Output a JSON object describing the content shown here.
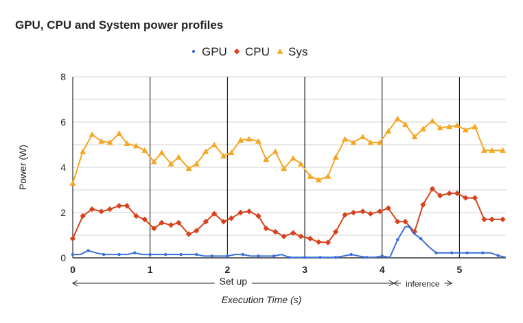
{
  "chart_data": {
    "type": "line",
    "title": "GPU, CPU and System power profiles",
    "xlabel": "Execution Time (s)",
    "ylabel": "Power (W)",
    "xlim": [
      0,
      5.6
    ],
    "ylim": [
      0,
      8
    ],
    "xticks": [
      0,
      1,
      2,
      3,
      4,
      5
    ],
    "yticks": [
      0,
      2,
      4,
      6,
      8
    ],
    "x_tick_labels": [
      "0",
      "1",
      "2",
      "3",
      "4",
      "5"
    ],
    "y_tick_labels": [
      "0",
      "2",
      "4",
      "6",
      "8"
    ],
    "legend_position": "top-center",
    "phases": [
      {
        "label": "Set up",
        "start": 0,
        "end": 4.15
      },
      {
        "label": "inference",
        "start": 4.15,
        "end": 4.9
      }
    ],
    "series": [
      {
        "name": "GPU",
        "color": "#3b6fd8",
        "marker": "circle",
        "x": [
          0,
          0.1,
          0.2,
          0.3,
          0.4,
          0.5,
          0.6,
          0.7,
          0.8,
          0.9,
          1.0,
          1.1,
          1.2,
          1.3,
          1.4,
          1.5,
          1.6,
          1.7,
          1.8,
          1.9,
          2.0,
          2.1,
          2.2,
          2.3,
          2.4,
          2.5,
          2.6,
          2.7,
          2.8,
          2.9,
          3.0,
          3.1,
          3.2,
          3.3,
          3.4,
          3.5,
          3.6,
          3.7,
          3.8,
          3.9,
          4.0,
          4.1,
          4.2,
          4.3,
          4.35,
          4.4,
          4.5,
          4.6,
          4.7,
          4.8,
          4.9,
          5.0,
          5.1,
          5.2,
          5.3,
          5.4,
          5.5,
          5.6
        ],
        "values": [
          0.15,
          0.15,
          0.32,
          0.22,
          0.15,
          0.15,
          0.15,
          0.15,
          0.22,
          0.15,
          0.15,
          0.15,
          0.15,
          0.15,
          0.15,
          0.15,
          0.15,
          0.08,
          0.08,
          0.08,
          0.08,
          0.15,
          0.15,
          0.08,
          0.08,
          0.08,
          0.08,
          0.15,
          0.02,
          0.02,
          0.02,
          0.02,
          0.02,
          0.02,
          0.02,
          0.08,
          0.15,
          0.08,
          0.02,
          0.02,
          0.08,
          0.02,
          0.8,
          1.38,
          1.38,
          1.1,
          0.85,
          0.5,
          0.22,
          0.22,
          0.22,
          0.22,
          0.22,
          0.22,
          0.22,
          0.22,
          0.1,
          0.02
        ]
      },
      {
        "name": "CPU",
        "color": "#d7421c",
        "marker": "diamond",
        "x": [
          0,
          0.13,
          0.25,
          0.37,
          0.48,
          0.6,
          0.7,
          0.82,
          0.93,
          1.05,
          1.15,
          1.27,
          1.37,
          1.5,
          1.6,
          1.72,
          1.83,
          1.95,
          2.05,
          2.17,
          2.28,
          2.4,
          2.5,
          2.62,
          2.73,
          2.85,
          2.95,
          3.07,
          3.18,
          3.3,
          3.4,
          3.52,
          3.63,
          3.75,
          3.85,
          3.97,
          4.08,
          4.2,
          4.3,
          4.42,
          4.53,
          4.65,
          4.75,
          4.87,
          4.97,
          5.08,
          5.2,
          5.32,
          5.42,
          5.56
        ],
        "values": [
          0.85,
          1.85,
          2.15,
          2.05,
          2.15,
          2.3,
          2.3,
          1.85,
          1.7,
          1.3,
          1.55,
          1.45,
          1.55,
          1.05,
          1.2,
          1.6,
          1.95,
          1.6,
          1.75,
          2.0,
          2.05,
          1.85,
          1.3,
          1.15,
          0.95,
          1.1,
          0.95,
          0.85,
          0.7,
          0.68,
          1.15,
          1.9,
          2.0,
          2.05,
          1.95,
          2.05,
          2.2,
          1.6,
          1.6,
          1.15,
          2.35,
          3.05,
          2.75,
          2.85,
          2.85,
          2.65,
          2.65,
          1.7,
          1.7,
          1.7
        ]
      },
      {
        "name": "Sys",
        "color": "#f5a623",
        "marker": "triangle",
        "x": [
          0,
          0.13,
          0.25,
          0.37,
          0.48,
          0.6,
          0.7,
          0.82,
          0.93,
          1.05,
          1.15,
          1.27,
          1.37,
          1.5,
          1.6,
          1.72,
          1.83,
          1.95,
          2.05,
          2.17,
          2.28,
          2.4,
          2.5,
          2.62,
          2.73,
          2.85,
          2.95,
          3.07,
          3.18,
          3.3,
          3.4,
          3.52,
          3.63,
          3.75,
          3.85,
          3.97,
          4.08,
          4.2,
          4.3,
          4.42,
          4.53,
          4.65,
          4.75,
          4.87,
          4.97,
          5.08,
          5.2,
          5.32,
          5.42,
          5.56
        ],
        "values": [
          3.3,
          4.7,
          5.45,
          5.15,
          5.1,
          5.5,
          5.05,
          4.95,
          4.75,
          4.25,
          4.65,
          4.15,
          4.45,
          3.95,
          4.15,
          4.7,
          5.0,
          4.5,
          4.65,
          5.2,
          5.25,
          5.15,
          4.35,
          4.7,
          3.95,
          4.4,
          4.15,
          3.6,
          3.45,
          3.6,
          4.45,
          5.25,
          5.1,
          5.35,
          5.1,
          5.1,
          5.6,
          6.15,
          5.9,
          5.35,
          5.7,
          6.05,
          5.75,
          5.8,
          5.85,
          5.65,
          5.8,
          4.75,
          4.75,
          4.75
        ]
      }
    ]
  }
}
